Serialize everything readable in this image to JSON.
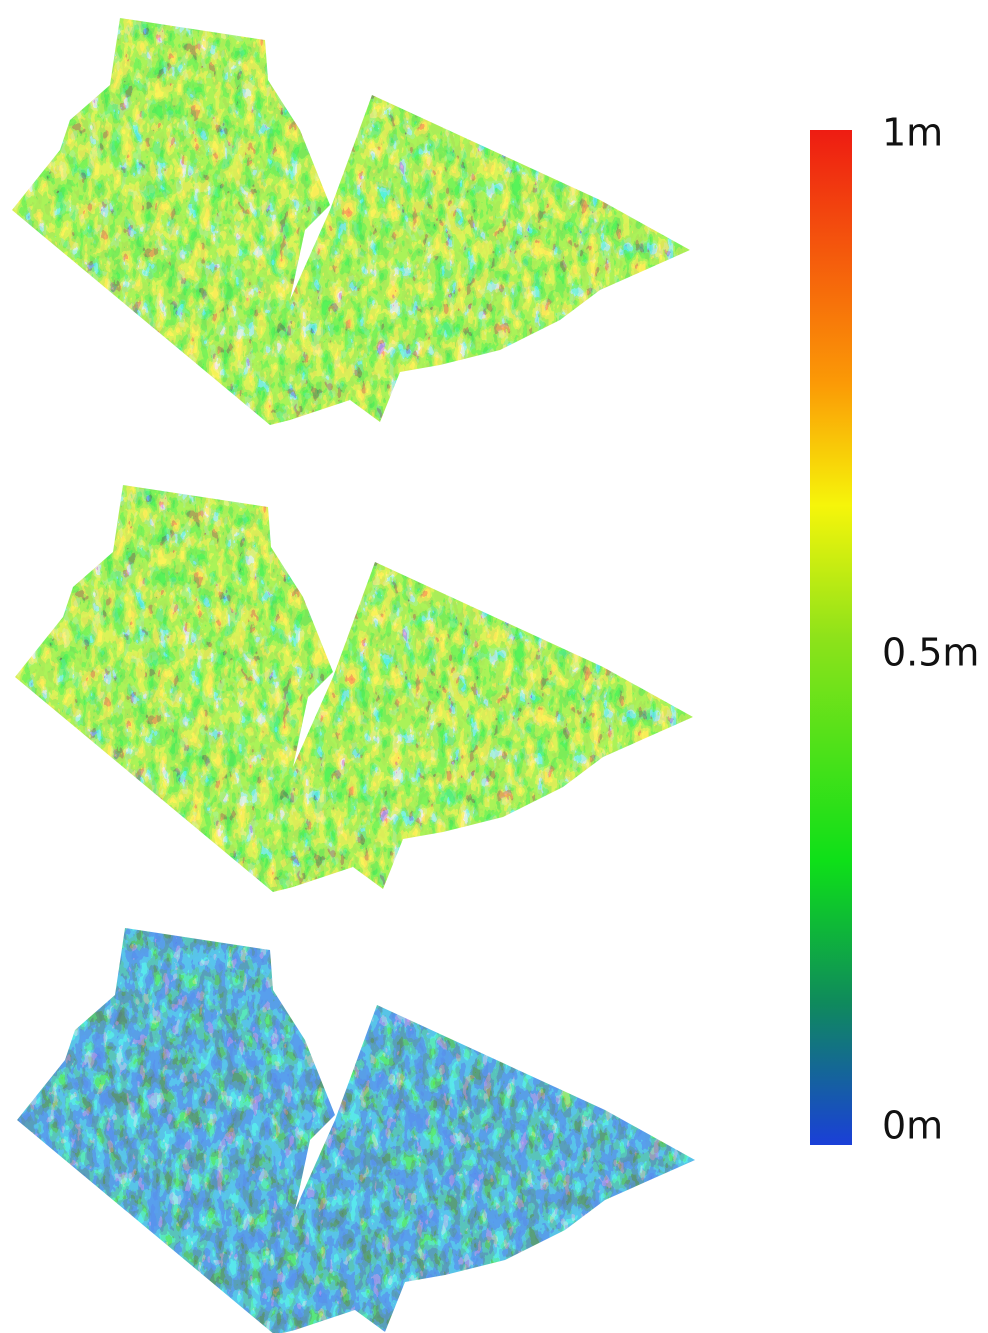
{
  "colorbar": {
    "labels": [
      "1m",
      "0.5m",
      "0m"
    ]
  }
}
